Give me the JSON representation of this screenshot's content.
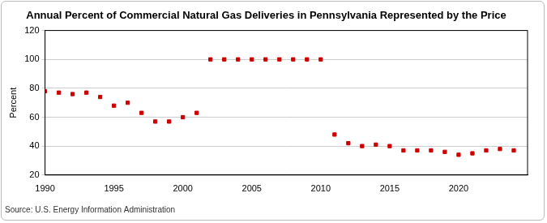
{
  "chart_data": {
    "type": "scatter",
    "title": "Annual Percent of Commercial Natural Gas Deliveries in Pennsylvania Represented by the Price",
    "y_label": "Percent",
    "source": "Source: U.S. Energy Information Administration",
    "x": [
      1990,
      1991,
      1992,
      1993,
      1994,
      1995,
      1996,
      1997,
      1998,
      1999,
      2000,
      2001,
      2002,
      2003,
      2004,
      2005,
      2006,
      2007,
      2008,
      2009,
      2010,
      2011,
      2012,
      2013,
      2014,
      2015,
      2016,
      2017,
      2018,
      2019,
      2020,
      2021,
      2022,
      2023,
      2024
    ],
    "values": [
      78,
      77,
      76,
      77,
      74,
      68,
      70,
      63,
      57,
      57,
      60,
      63,
      100,
      100,
      100,
      100,
      100,
      100,
      100,
      100,
      100,
      48,
      42,
      40,
      41,
      40,
      37,
      37,
      37,
      36,
      34,
      35,
      37,
      38,
      37
    ],
    "color": "#cc0000",
    "marker": "square",
    "xlim": [
      1990,
      2025
    ],
    "xticks": [
      1990,
      1995,
      2000,
      2005,
      2010,
      2015,
      2020
    ],
    "ylim": [
      20,
      120
    ],
    "yticks": [
      20,
      40,
      60,
      80,
      100,
      120
    ],
    "grid": true
  }
}
